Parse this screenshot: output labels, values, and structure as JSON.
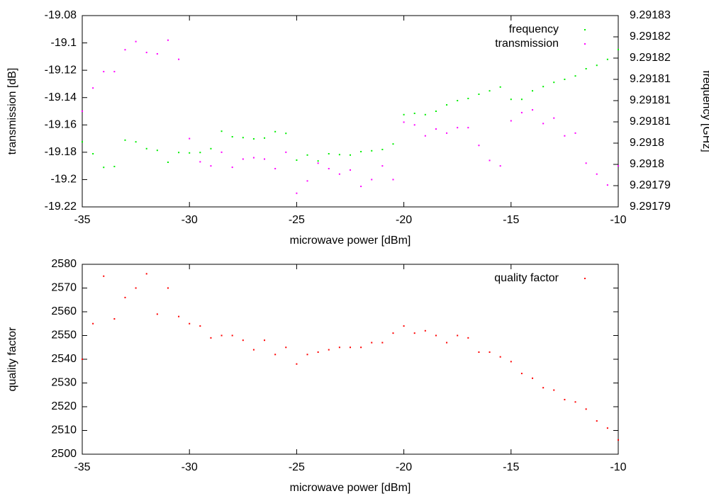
{
  "chart_data": [
    {
      "type": "scatter",
      "xlabel": "microwave power [dBm]",
      "ylabel": "transmission [dB]",
      "y2label": "frequency [GHz]",
      "legend": "upper right",
      "x": [
        -35,
        -34.5,
        -34,
        -33.5,
        -33,
        -32.5,
        -32,
        -31.5,
        -31,
        -30.5,
        -30,
        -29.5,
        -29,
        -28.5,
        -28,
        -27.5,
        -27,
        -26.5,
        -26,
        -25.5,
        -25,
        -24.5,
        -24,
        -23.5,
        -23,
        -22.5,
        -22,
        -21.5,
        -21,
        -20.5,
        -20,
        -19.5,
        -19,
        -18.5,
        -18,
        -17.5,
        -17,
        -16.5,
        -16,
        -15.5,
        -15,
        -14.5,
        -14,
        -13.5,
        -13,
        -12.5,
        -12,
        -11.5,
        -11,
        -10.5,
        -10
      ],
      "xlim": [
        -35,
        -10
      ],
      "xticks": [
        -35,
        -30,
        -25,
        -20,
        -15,
        -10
      ],
      "ylim": [
        -19.22,
        -19.08
      ],
      "yticks": [
        -19.22,
        -19.2,
        -19.18,
        -19.16,
        -19.14,
        -19.12,
        -19.1,
        -19.08
      ],
      "y2lim": [
        9.291785,
        9.29183
      ],
      "y2ticks": [
        {
          "value": 9.291785,
          "label": "9.29179"
        },
        9.29179,
        {
          "value": 9.291795,
          "label": "9.2918"
        },
        9.2918,
        {
          "value": 9.291805,
          "label": "9.29181"
        },
        9.29181,
        {
          "value": 9.291815,
          "label": "9.29181"
        },
        9.29182,
        {
          "value": 9.291825,
          "label": "9.29182"
        },
        {
          "value": 9.29183,
          "label": "9.29183"
        }
      ],
      "series": [
        {
          "name": "frequency",
          "color": "#00ee00",
          "axis": "y2",
          "values": [
            9.2918003,
            9.2917975,
            9.2917943,
            9.2917945,
            9.2918007,
            9.2918003,
            9.2917987,
            9.2917983,
            9.2917955,
            9.2917978,
            9.2917977,
            9.2917978,
            9.2917987,
            9.2918028,
            9.2918015,
            9.2918013,
            9.291801,
            9.2918012,
            9.2918027,
            9.2918023,
            9.291796,
            9.2917972,
            9.2917958,
            9.2917975,
            9.2917973,
            9.2917972,
            9.291798,
            9.2917982,
            9.2917985,
            9.2917998,
            9.2918067,
            9.291807,
            9.2918067,
            9.2918075,
            9.291809,
            9.29181,
            9.2918105,
            9.2918115,
            9.2918123,
            9.2918132,
            9.2918103,
            9.2918103,
            9.2918123,
            9.2918133,
            9.2918143,
            9.291815,
            9.2918158,
            9.2918175,
            9.2918183,
            9.2918197,
            9.291822
          ]
        },
        {
          "name": "transmission",
          "color": "#ff00ff",
          "values": [
            -19.15,
            -19.133,
            -19.121,
            -19.121,
            -19.105,
            -19.099,
            -19.107,
            -19.108,
            -19.098,
            -19.112,
            -19.17,
            -19.187,
            -19.19,
            -19.18,
            -19.191,
            -19.185,
            -19.184,
            -19.185,
            -19.192,
            -19.18,
            -19.21,
            -19.201,
            -19.188,
            -19.192,
            -19.196,
            -19.193,
            -19.205,
            -19.2,
            -19.19,
            -19.2,
            -19.158,
            -19.16,
            -19.168,
            -19.163,
            -19.166,
            -19.162,
            -19.162,
            -19.175,
            -19.186,
            -19.19,
            -19.157,
            -19.151,
            -19.149,
            -19.159,
            -19.155,
            -19.168,
            -19.166,
            -19.188,
            -19.196,
            -19.204,
            -19.19
          ]
        }
      ]
    },
    {
      "type": "scatter",
      "xlabel": "microwave power [dBm]",
      "ylabel": "quality factor",
      "legend": "upper right",
      "x": [
        -35,
        -34.5,
        -34,
        -33.5,
        -33,
        -32.5,
        -32,
        -31.5,
        -31,
        -30.5,
        -30,
        -29.5,
        -29,
        -28.5,
        -28,
        -27.5,
        -27,
        -26.5,
        -26,
        -25.5,
        -25,
        -24.5,
        -24,
        -23.5,
        -23,
        -22.5,
        -22,
        -21.5,
        -21,
        -20.5,
        -20,
        -19.5,
        -19,
        -18.5,
        -18,
        -17.5,
        -17,
        -16.5,
        -16,
        -15.5,
        -15,
        -14.5,
        -14,
        -13.5,
        -13,
        -12.5,
        -12,
        -11.5,
        -11,
        -10.5,
        -10
      ],
      "xlim": [
        -35,
        -10
      ],
      "xticks": [
        -35,
        -30,
        -25,
        -20,
        -15,
        -10
      ],
      "ylim": [
        2500,
        2580
      ],
      "yticks": [
        2500,
        2510,
        2520,
        2530,
        2540,
        2550,
        2560,
        2570,
        2580
      ],
      "series": [
        {
          "name": "quality factor",
          "color": "#ff0000",
          "values": [
            2540,
            2555,
            2575,
            2557,
            2566,
            2570,
            2576,
            2559,
            2570,
            2558,
            2555,
            2554,
            2549,
            2550,
            2550,
            2548,
            2544,
            2548,
            2542,
            2545,
            2538,
            2542,
            2543,
            2544,
            2545,
            2545,
            2545,
            2547,
            2547,
            2551,
            2554,
            2551,
            2552,
            2550,
            2547,
            2550,
            2549,
            2543,
            2543,
            2541,
            2539,
            2534,
            2532,
            2528,
            2527,
            2523,
            2522,
            2519,
            2514,
            2511,
            2506
          ]
        }
      ]
    }
  ]
}
